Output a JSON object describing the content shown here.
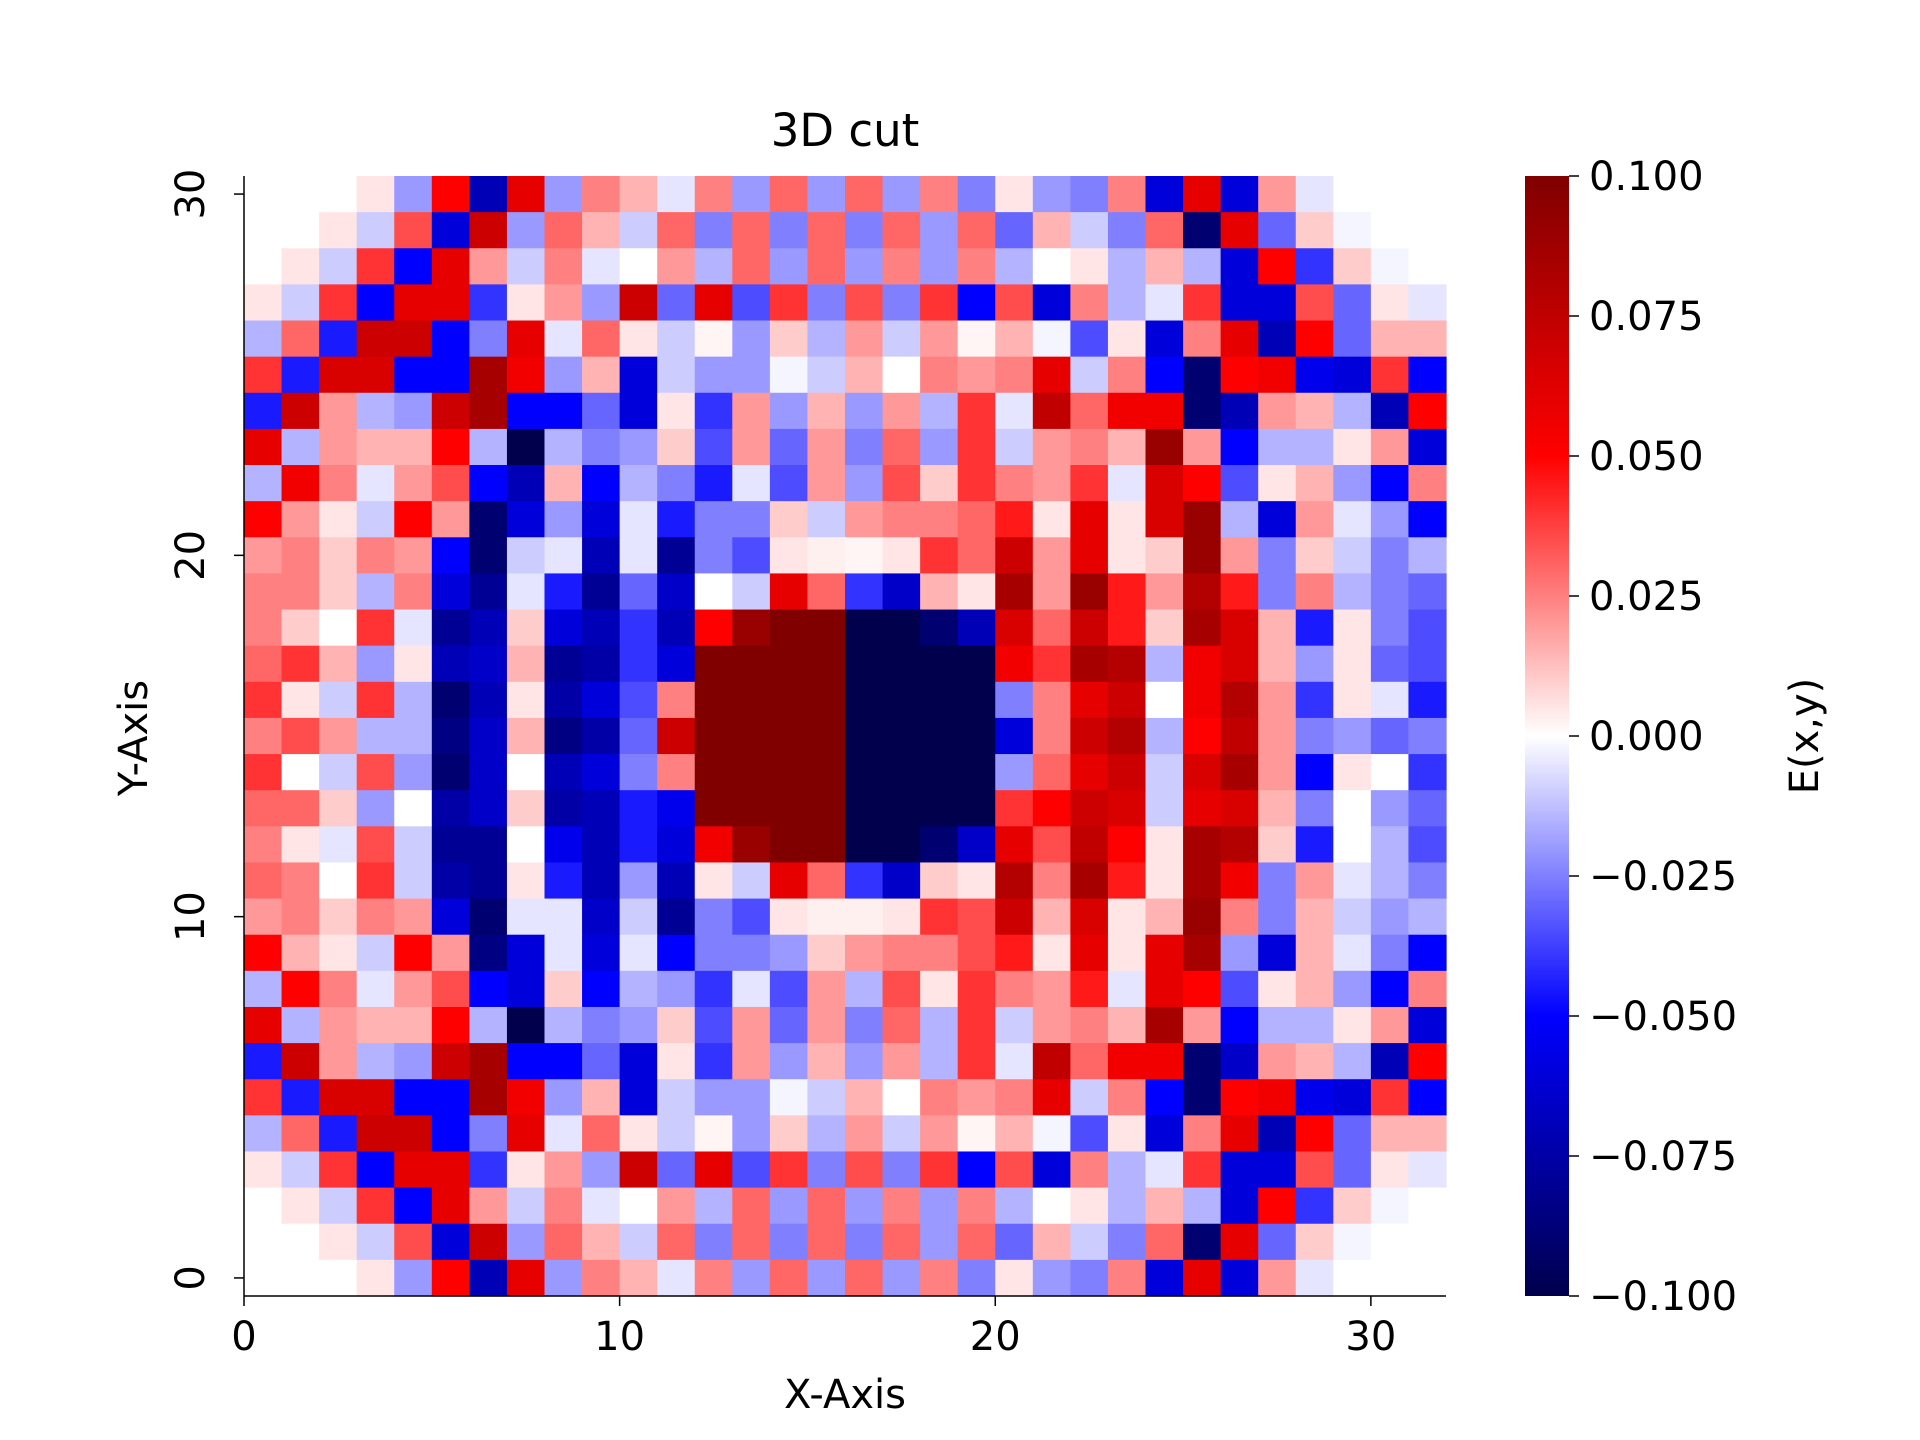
{
  "chart_data": {
    "type": "heatmap",
    "title": "3D cut",
    "xlabel": "X-Axis",
    "ylabel": "Y-Axis",
    "colorbar_label": "E(x,y)",
    "colormap": "seismic",
    "colormap_stops": [
      "#00004c",
      "#0000ff",
      "#ffffff",
      "#ff0000",
      "#800000"
    ],
    "vmin": -0.1,
    "vmax": 0.1,
    "xlim": [
      0,
      32
    ],
    "ylim": [
      -0.5,
      30.5
    ],
    "x_ticks": [
      "0",
      "10",
      "20",
      "30"
    ],
    "y_ticks": [
      "0",
      "10",
      "20",
      "30"
    ],
    "colorbar_ticks": [
      "0.100",
      "0.075",
      "0.050",
      "0.025",
      "0.000",
      "−0.025",
      "−0.050",
      "−0.075",
      "−0.100"
    ],
    "grid": false,
    "n_cols": 32,
    "n_rows": 31,
    "values_row_order": "top-to-bottom",
    "values": [
      [
        0.0,
        0.0,
        0.0,
        0.005,
        -0.02,
        0.05,
        -0.07,
        0.06,
        -0.02,
        0.025,
        0.015,
        -0.005,
        0.025,
        -0.02,
        0.03,
        -0.02,
        0.03,
        -0.02,
        0.025,
        -0.025,
        0.005,
        -0.02,
        -0.025,
        0.025,
        -0.06,
        0.06,
        -0.06,
        0.02,
        -0.005,
        0.0,
        0.0,
        0.0
      ],
      [
        0.0,
        0.0,
        0.005,
        -0.01,
        0.035,
        -0.06,
        0.07,
        -0.02,
        0.03,
        0.015,
        -0.01,
        0.03,
        -0.025,
        0.03,
        -0.025,
        0.03,
        -0.025,
        0.03,
        -0.02,
        0.03,
        -0.03,
        0.015,
        -0.01,
        -0.025,
        0.03,
        -0.09,
        0.06,
        -0.03,
        0.01,
        -0.002,
        0.0,
        0.0
      ],
      [
        0.0,
        0.005,
        -0.01,
        0.04,
        -0.05,
        0.06,
        0.02,
        -0.01,
        0.025,
        -0.005,
        0.0,
        0.02,
        -0.015,
        0.03,
        -0.02,
        0.03,
        -0.02,
        0.025,
        -0.02,
        0.025,
        -0.015,
        0.0,
        0.005,
        -0.015,
        0.015,
        -0.015,
        -0.06,
        0.05,
        -0.04,
        0.01,
        -0.002,
        0.0
      ],
      [
        0.005,
        -0.01,
        0.04,
        -0.05,
        0.06,
        0.06,
        -0.04,
        0.005,
        0.02,
        -0.02,
        0.07,
        -0.03,
        0.06,
        -0.035,
        0.04,
        -0.025,
        0.035,
        -0.025,
        0.04,
        -0.05,
        0.035,
        -0.06,
        0.025,
        -0.015,
        -0.005,
        0.04,
        -0.06,
        -0.06,
        0.035,
        -0.03,
        0.005,
        -0.005
      ],
      [
        -0.015,
        0.03,
        -0.045,
        0.07,
        0.07,
        -0.05,
        -0.025,
        0.06,
        -0.005,
        0.03,
        0.005,
        -0.01,
        0.002,
        -0.02,
        0.01,
        -0.015,
        0.02,
        -0.01,
        0.02,
        0.002,
        0.015,
        -0.002,
        -0.035,
        0.005,
        -0.06,
        0.025,
        0.06,
        -0.07,
        0.05,
        -0.03,
        0.015,
        0.015
      ],
      [
        0.04,
        -0.045,
        0.065,
        0.065,
        -0.05,
        -0.05,
        0.085,
        0.055,
        -0.02,
        0.015,
        -0.06,
        -0.01,
        -0.02,
        -0.02,
        -0.002,
        -0.01,
        0.015,
        0.0,
        0.025,
        0.02,
        0.025,
        0.06,
        -0.01,
        0.025,
        -0.05,
        -0.09,
        0.05,
        0.055,
        -0.055,
        -0.06,
        0.04,
        -0.05
      ],
      [
        -0.045,
        0.07,
        0.02,
        -0.015,
        -0.02,
        0.07,
        0.085,
        -0.05,
        -0.05,
        -0.03,
        -0.06,
        0.005,
        -0.04,
        0.02,
        -0.02,
        0.015,
        -0.02,
        0.02,
        -0.015,
        0.04,
        -0.005,
        0.075,
        0.03,
        0.055,
        0.055,
        -0.09,
        -0.07,
        0.02,
        0.015,
        -0.015,
        -0.07,
        0.05
      ],
      [
        0.06,
        -0.015,
        0.02,
        0.015,
        0.015,
        0.05,
        -0.015,
        -0.1,
        -0.015,
        -0.025,
        -0.02,
        0.01,
        -0.035,
        0.02,
        -0.03,
        0.02,
        -0.025,
        0.03,
        -0.02,
        0.04,
        -0.01,
        0.02,
        0.025,
        0.015,
        0.09,
        0.02,
        -0.05,
        -0.015,
        -0.015,
        0.005,
        0.02,
        -0.06
      ],
      [
        -0.015,
        0.055,
        0.025,
        -0.005,
        0.02,
        0.035,
        -0.05,
        -0.07,
        0.015,
        -0.05,
        -0.015,
        -0.025,
        -0.045,
        -0.005,
        -0.035,
        0.02,
        -0.02,
        0.035,
        0.01,
        0.04,
        0.025,
        0.02,
        0.04,
        -0.005,
        0.065,
        0.05,
        -0.035,
        0.005,
        0.015,
        -0.02,
        -0.05,
        0.025
      ],
      [
        0.05,
        0.02,
        0.005,
        -0.01,
        0.05,
        0.02,
        -0.09,
        -0.06,
        -0.02,
        -0.06,
        -0.005,
        -0.045,
        -0.025,
        -0.025,
        0.01,
        -0.01,
        0.02,
        0.025,
        0.025,
        0.03,
        0.045,
        0.005,
        0.06,
        0.005,
        0.065,
        0.09,
        -0.015,
        -0.06,
        0.02,
        -0.005,
        -0.02,
        -0.05
      ],
      [
        0.02,
        0.025,
        0.01,
        0.025,
        0.02,
        -0.05,
        -0.09,
        -0.01,
        -0.005,
        -0.07,
        -0.005,
        -0.08,
        -0.025,
        -0.035,
        0.005,
        0.003,
        0.002,
        0.005,
        0.04,
        0.03,
        0.07,
        0.02,
        0.06,
        0.005,
        0.01,
        0.09,
        0.02,
        -0.025,
        0.01,
        -0.01,
        -0.025,
        -0.015
      ],
      [
        0.025,
        0.025,
        0.01,
        -0.015,
        0.025,
        -0.06,
        -0.08,
        -0.005,
        -0.045,
        -0.08,
        -0.03,
        -0.065,
        0.0,
        -0.01,
        0.06,
        0.03,
        -0.04,
        -0.065,
        0.015,
        0.005,
        0.085,
        0.02,
        0.09,
        0.045,
        0.02,
        0.08,
        0.045,
        -0.025,
        0.025,
        -0.015,
        -0.025,
        -0.03
      ],
      [
        0.025,
        0.01,
        0.0,
        0.04,
        -0.005,
        -0.08,
        -0.07,
        0.01,
        -0.06,
        -0.07,
        -0.04,
        -0.07,
        0.05,
        0.09,
        0.1,
        0.1,
        -0.1,
        -0.1,
        -0.09,
        -0.07,
        0.065,
        0.03,
        0.07,
        0.045,
        0.01,
        0.085,
        0.065,
        0.015,
        -0.045,
        0.005,
        -0.025,
        -0.035
      ],
      [
        0.03,
        0.04,
        0.015,
        -0.02,
        0.005,
        -0.07,
        -0.065,
        0.015,
        -0.08,
        -0.075,
        -0.04,
        -0.06,
        0.1,
        0.1,
        0.1,
        0.1,
        -0.1,
        -0.1,
        -0.1,
        -0.1,
        0.055,
        0.04,
        0.085,
        0.08,
        -0.015,
        0.055,
        0.065,
        0.015,
        -0.02,
        0.005,
        -0.03,
        -0.035
      ],
      [
        0.04,
        0.005,
        -0.01,
        0.04,
        -0.015,
        -0.09,
        -0.07,
        0.005,
        -0.075,
        -0.06,
        -0.035,
        0.025,
        0.1,
        0.1,
        0.1,
        0.1,
        -0.1,
        -0.1,
        -0.1,
        -0.1,
        -0.025,
        0.025,
        0.06,
        0.07,
        0.0,
        0.055,
        0.08,
        0.02,
        -0.04,
        0.005,
        -0.005,
        -0.045
      ],
      [
        0.025,
        0.035,
        0.02,
        -0.015,
        -0.015,
        -0.085,
        -0.065,
        0.015,
        -0.085,
        -0.075,
        -0.03,
        0.07,
        0.1,
        0.1,
        0.1,
        0.1,
        -0.1,
        -0.1,
        -0.1,
        -0.1,
        -0.06,
        0.025,
        0.07,
        0.08,
        -0.015,
        0.05,
        0.075,
        0.02,
        -0.025,
        -0.02,
        -0.03,
        -0.025
      ],
      [
        0.04,
        0.0,
        -0.01,
        0.035,
        -0.02,
        -0.09,
        -0.065,
        0.0,
        -0.07,
        -0.06,
        -0.025,
        0.025,
        0.1,
        0.1,
        0.1,
        0.1,
        -0.1,
        -0.1,
        -0.1,
        -0.1,
        -0.02,
        0.03,
        0.06,
        0.07,
        -0.01,
        0.065,
        0.085,
        0.02,
        -0.05,
        0.005,
        0.0,
        -0.04
      ],
      [
        0.03,
        0.03,
        0.01,
        -0.02,
        0.0,
        -0.075,
        -0.065,
        0.01,
        -0.075,
        -0.07,
        -0.045,
        -0.055,
        0.1,
        0.1,
        0.1,
        0.1,
        -0.1,
        -0.1,
        -0.1,
        -0.1,
        0.04,
        0.05,
        0.07,
        0.065,
        -0.01,
        0.06,
        0.065,
        0.015,
        -0.025,
        0.0,
        -0.02,
        -0.03
      ],
      [
        0.025,
        0.005,
        -0.005,
        0.035,
        -0.01,
        -0.08,
        -0.08,
        0.0,
        -0.055,
        -0.07,
        -0.045,
        -0.06,
        0.055,
        0.09,
        0.1,
        0.1,
        -0.1,
        -0.1,
        -0.09,
        -0.065,
        0.06,
        0.035,
        0.075,
        0.05,
        0.005,
        0.085,
        0.08,
        0.01,
        -0.045,
        0.0,
        -0.015,
        -0.035
      ],
      [
        0.03,
        0.025,
        0.0,
        0.04,
        -0.01,
        -0.075,
        -0.08,
        0.005,
        -0.045,
        -0.07,
        -0.02,
        -0.07,
        0.005,
        -0.01,
        0.06,
        0.03,
        -0.04,
        -0.065,
        0.01,
        0.005,
        0.08,
        0.025,
        0.085,
        0.045,
        0.005,
        0.085,
        0.055,
        -0.025,
        0.02,
        -0.005,
        -0.015,
        -0.025
      ],
      [
        0.02,
        0.025,
        0.01,
        0.025,
        0.02,
        -0.06,
        -0.09,
        -0.005,
        -0.005,
        -0.065,
        -0.01,
        -0.08,
        -0.025,
        -0.035,
        0.005,
        0.003,
        0.003,
        0.005,
        0.04,
        0.035,
        0.07,
        0.015,
        0.065,
        0.005,
        0.015,
        0.09,
        0.025,
        -0.025,
        0.015,
        -0.01,
        -0.02,
        -0.015
      ],
      [
        0.05,
        0.015,
        0.005,
        -0.01,
        0.05,
        0.02,
        -0.085,
        -0.06,
        -0.005,
        -0.06,
        -0.005,
        -0.05,
        -0.025,
        -0.025,
        -0.02,
        0.01,
        0.02,
        0.025,
        0.025,
        0.035,
        0.045,
        0.005,
        0.06,
        0.005,
        0.06,
        0.085,
        -0.02,
        -0.06,
        0.015,
        -0.005,
        -0.025,
        -0.05
      ],
      [
        -0.015,
        0.05,
        0.025,
        -0.005,
        0.02,
        0.035,
        -0.05,
        -0.06,
        0.01,
        -0.05,
        -0.015,
        -0.02,
        -0.04,
        -0.005,
        -0.035,
        0.02,
        -0.015,
        0.035,
        0.005,
        0.04,
        0.025,
        0.02,
        0.045,
        -0.005,
        0.06,
        0.05,
        -0.035,
        0.005,
        0.015,
        -0.02,
        -0.05,
        0.025
      ],
      [
        0.06,
        -0.015,
        0.02,
        0.015,
        0.015,
        0.05,
        -0.015,
        -0.1,
        -0.015,
        -0.025,
        -0.02,
        0.01,
        -0.035,
        0.02,
        -0.03,
        0.02,
        -0.025,
        0.03,
        -0.015,
        0.04,
        -0.01,
        0.02,
        0.025,
        0.015,
        0.085,
        0.02,
        -0.05,
        -0.015,
        -0.015,
        0.005,
        0.02,
        -0.06
      ],
      [
        -0.045,
        0.07,
        0.02,
        -0.015,
        -0.02,
        0.07,
        0.085,
        -0.05,
        -0.05,
        -0.03,
        -0.06,
        0.005,
        -0.04,
        0.02,
        -0.02,
        0.015,
        -0.02,
        0.02,
        -0.015,
        0.04,
        -0.005,
        0.075,
        0.03,
        0.055,
        0.055,
        -0.09,
        -0.065,
        0.02,
        0.015,
        -0.015,
        -0.07,
        0.05
      ],
      [
        0.04,
        -0.045,
        0.065,
        0.065,
        -0.05,
        -0.05,
        0.085,
        0.055,
        -0.02,
        0.015,
        -0.06,
        -0.01,
        -0.02,
        -0.02,
        -0.002,
        -0.01,
        0.015,
        0.0,
        0.025,
        0.02,
        0.025,
        0.06,
        -0.01,
        0.025,
        -0.05,
        -0.09,
        0.05,
        0.055,
        -0.055,
        -0.06,
        0.04,
        -0.05
      ],
      [
        -0.015,
        0.03,
        -0.045,
        0.07,
        0.07,
        -0.05,
        -0.025,
        0.06,
        -0.005,
        0.03,
        0.005,
        -0.01,
        0.002,
        -0.02,
        0.01,
        -0.015,
        0.02,
        -0.01,
        0.02,
        0.002,
        0.015,
        -0.002,
        -0.035,
        0.005,
        -0.06,
        0.025,
        0.06,
        -0.07,
        0.05,
        -0.03,
        0.015,
        0.015
      ],
      [
        0.005,
        -0.01,
        0.04,
        -0.05,
        0.06,
        0.06,
        -0.04,
        0.005,
        0.02,
        -0.02,
        0.07,
        -0.03,
        0.06,
        -0.035,
        0.04,
        -0.025,
        0.035,
        -0.025,
        0.04,
        -0.05,
        0.035,
        -0.06,
        0.025,
        -0.015,
        -0.005,
        0.04,
        -0.06,
        -0.06,
        0.035,
        -0.03,
        0.005,
        -0.005
      ],
      [
        0.0,
        0.005,
        -0.01,
        0.04,
        -0.05,
        0.06,
        0.02,
        -0.01,
        0.025,
        -0.005,
        0.0,
        0.02,
        -0.015,
        0.03,
        -0.02,
        0.03,
        -0.02,
        0.025,
        -0.02,
        0.025,
        -0.015,
        0.0,
        0.005,
        -0.015,
        0.015,
        -0.015,
        -0.06,
        0.05,
        -0.04,
        0.01,
        -0.002,
        0.0
      ],
      [
        0.0,
        0.0,
        0.005,
        -0.01,
        0.035,
        -0.06,
        0.07,
        -0.02,
        0.03,
        0.015,
        -0.01,
        0.03,
        -0.025,
        0.03,
        -0.025,
        0.03,
        -0.025,
        0.03,
        -0.02,
        0.03,
        -0.03,
        0.015,
        -0.01,
        -0.025,
        0.03,
        -0.09,
        0.06,
        -0.03,
        0.01,
        -0.002,
        0.0,
        0.0
      ],
      [
        0.0,
        0.0,
        0.0,
        0.005,
        -0.02,
        0.05,
        -0.07,
        0.06,
        -0.02,
        0.025,
        0.015,
        -0.005,
        0.025,
        -0.02,
        0.03,
        -0.02,
        0.03,
        -0.02,
        0.025,
        -0.025,
        0.005,
        -0.02,
        -0.025,
        0.025,
        -0.06,
        0.06,
        -0.06,
        0.02,
        -0.005,
        0.0,
        0.0,
        0.0
      ]
    ]
  }
}
